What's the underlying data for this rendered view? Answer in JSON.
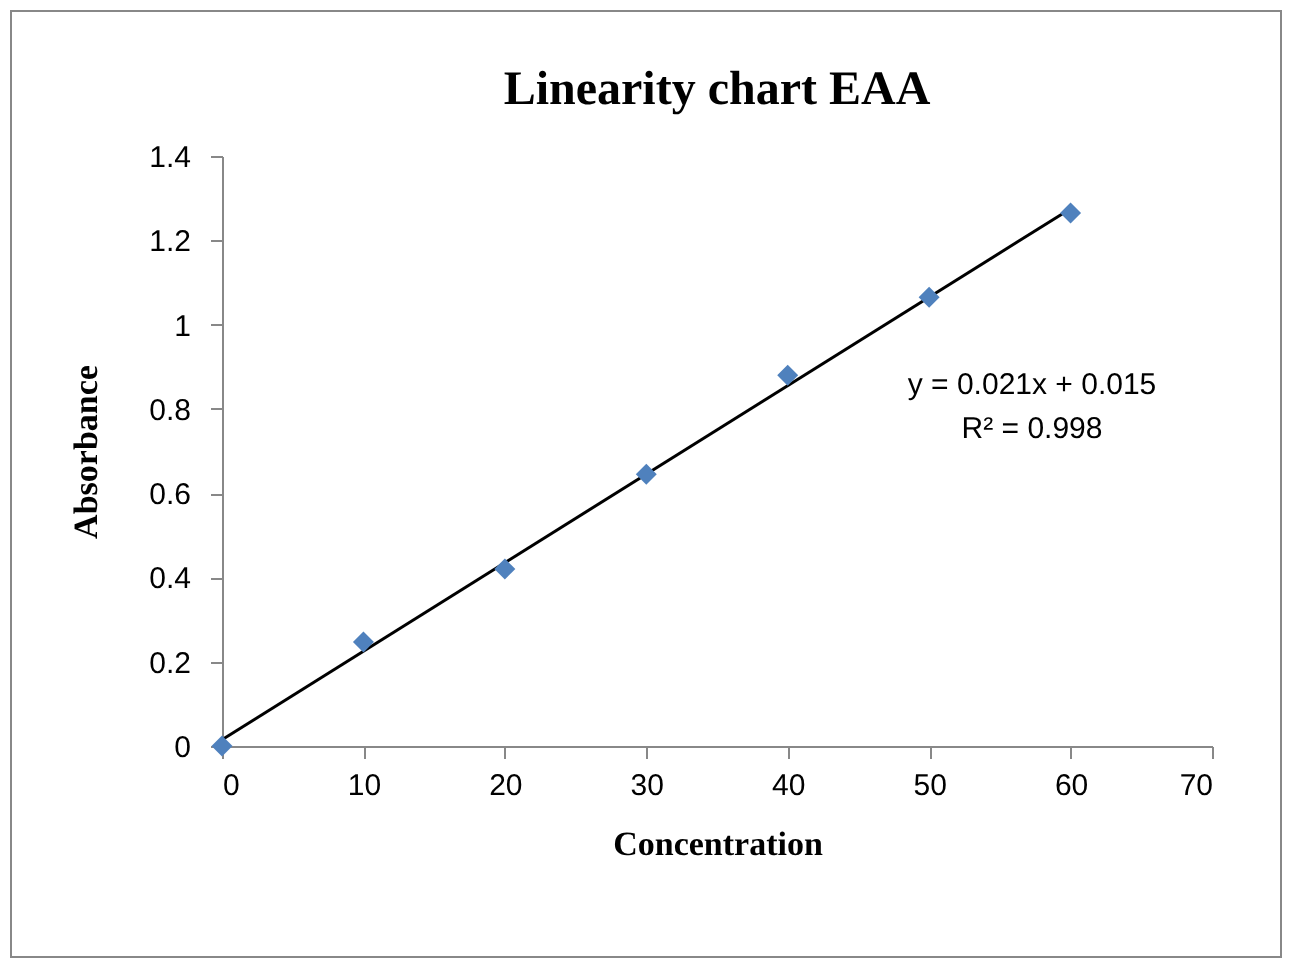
{
  "chart_data": {
    "type": "scatter",
    "title": "Linearity chart EAA",
    "xlabel": "Concentration",
    "ylabel": "Absorbance",
    "x": [
      0,
      10,
      20,
      30,
      40,
      50,
      60
    ],
    "series": [
      {
        "color": "#4f81bd",
        "marker": "diamond",
        "values": [
          0,
          0.247,
          0.42,
          0.645,
          0.88,
          1.065,
          1.265
        ]
      },
      {
        "type": "line",
        "marker": "none",
        "color": "#000000",
        "x": [
          0,
          60
        ],
        "values": [
          0.015,
          1.275
        ]
      }
    ],
    "xlim": [
      0,
      70
    ],
    "xticks": [
      0,
      10,
      20,
      30,
      40,
      50,
      60,
      70
    ],
    "ylim": [
      0,
      1.4
    ],
    "yticks": [
      0,
      0.2,
      0.4,
      0.6,
      0.8,
      1,
      1.2,
      1.4
    ],
    "annotations": [
      "y = 0.021x + 0.015",
      "R² = 0.998"
    ]
  }
}
